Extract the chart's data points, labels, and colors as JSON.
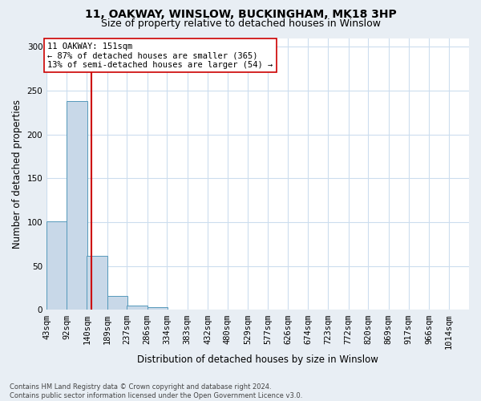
{
  "title_line1": "11, OAKWAY, WINSLOW, BUCKINGHAM, MK18 3HP",
  "title_line2": "Size of property relative to detached houses in Winslow",
  "xlabel": "Distribution of detached houses by size in Winslow",
  "ylabel": "Number of detached properties",
  "footnote": "Contains HM Land Registry data © Crown copyright and database right 2024.\nContains public sector information licensed under the Open Government Licence v3.0.",
  "bin_labels": [
    "43sqm",
    "92sqm",
    "140sqm",
    "189sqm",
    "237sqm",
    "286sqm",
    "334sqm",
    "383sqm",
    "432sqm",
    "480sqm",
    "529sqm",
    "577sqm",
    "626sqm",
    "674sqm",
    "723sqm",
    "772sqm",
    "820sqm",
    "869sqm",
    "917sqm",
    "966sqm",
    "1014sqm"
  ],
  "bin_edges": [
    43,
    92,
    140,
    189,
    237,
    286,
    334,
    383,
    432,
    480,
    529,
    577,
    626,
    674,
    723,
    772,
    820,
    869,
    917,
    966,
    1014
  ],
  "bar_values": [
    101,
    238,
    62,
    16,
    5,
    3,
    0,
    0,
    0,
    0,
    0,
    0,
    0,
    0,
    0,
    0,
    0,
    0,
    0,
    0
  ],
  "bar_color": "#c8d8e8",
  "bar_edge_color": "#5599bb",
  "property_value": 151,
  "vline_color": "#cc0000",
  "annotation_text": "11 OAKWAY: 151sqm\n← 87% of detached houses are smaller (365)\n13% of semi-detached houses are larger (54) →",
  "annotation_box_facecolor": "#ffffff",
  "annotation_box_edgecolor": "#cc0000",
  "ylim": [
    0,
    310
  ],
  "yticks": [
    0,
    50,
    100,
    150,
    200,
    250,
    300
  ],
  "fig_facecolor": "#e8eef4",
  "plot_facecolor": "#ffffff",
  "grid_color": "#ccddee",
  "title_fontsize": 10,
  "subtitle_fontsize": 9,
  "axis_label_fontsize": 8.5,
  "tick_fontsize": 7.5,
  "annotation_fontsize": 7.5,
  "footnote_fontsize": 6,
  "footnote_color": "#444444"
}
